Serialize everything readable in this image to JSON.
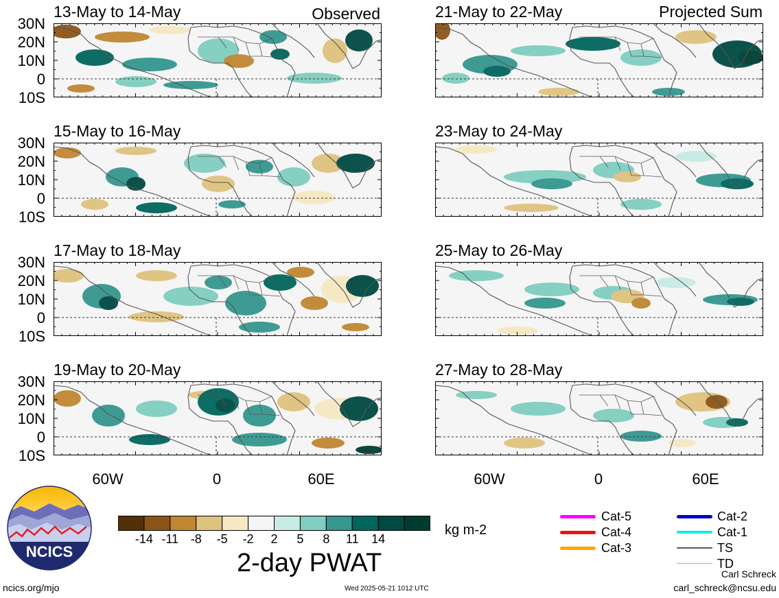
{
  "panels": {
    "left_corner_label": "Observed",
    "right_corner_label": "Projected Sum",
    "left_titles": [
      "13-May to 14-May",
      "15-May to 16-May",
      "17-May to 18-May",
      "19-May to 20-May"
    ],
    "right_titles": [
      "21-May to 22-May",
      "23-May to 24-May",
      "25-May to 26-May",
      "27-May to 28-May"
    ],
    "lat_labels": [
      "30N",
      "20N",
      "10N",
      "0",
      "10S"
    ],
    "lon_labels": [
      "60W",
      "0",
      "60E"
    ]
  },
  "colorbar": {
    "colors": [
      "#523109",
      "#8c5518",
      "#c08733",
      "#dfc27d",
      "#f5e8c2",
      "#f5f5f5",
      "#c8ebe5",
      "#80cdc1",
      "#35978f",
      "#01665e",
      "#004a42",
      "#003c30"
    ],
    "labels": [
      "-14",
      "-11",
      "-8",
      "-5",
      "-2",
      "2",
      "5",
      "8",
      "11",
      "14"
    ],
    "units": "kg m-2",
    "title": "2-day PWAT"
  },
  "legend": [
    {
      "label": "Cat-5",
      "color": "#ff00ff"
    },
    {
      "label": "Cat-4",
      "color": "#ee1111"
    },
    {
      "label": "Cat-3",
      "color": "#ffa500"
    },
    {
      "label": "Cat-2",
      "color": "#0000cc"
    },
    {
      "label": "Cat-1",
      "color": "#00eeee"
    },
    {
      "label": "TS",
      "color": "#555555"
    },
    {
      "label": "TD",
      "color": "#aaaaaa"
    }
  ],
  "logo": {
    "text": "NCICS"
  },
  "footer": {
    "site": "ncics.org/mjo",
    "timestamp": "Wed 2025-05-21 1012 UTC",
    "author": "Carl Schreck",
    "email": "carl_schreck@ncsu.edu"
  }
}
